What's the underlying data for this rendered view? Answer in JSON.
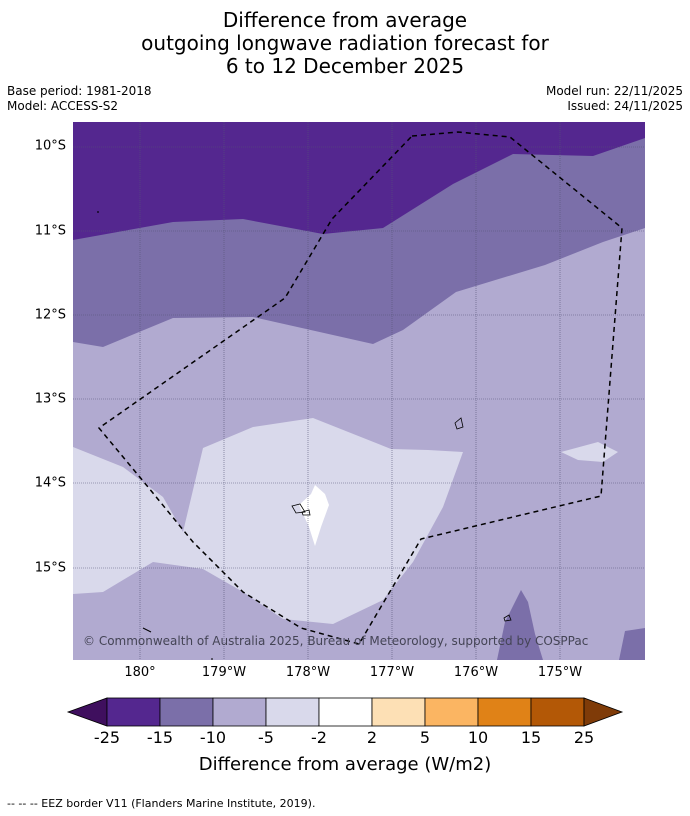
{
  "title": {
    "line1": "Difference from average",
    "line2": "outgoing longwave radiation forecast for",
    "line3": "6 to 12 December 2025"
  },
  "meta": {
    "base_period": "Base period: 1981-2018",
    "model": "Model: ACCESS-S2",
    "model_run": "Model run: 22/11/2025",
    "issued": "Issued: 24/11/2025"
  },
  "map": {
    "lat_labels": [
      "10°S",
      "11°S",
      "12°S",
      "13°S",
      "14°S",
      "15°S"
    ],
    "lon_labels": [
      "180°",
      "179°W",
      "178°W",
      "177°W",
      "176°W",
      "175°W"
    ],
    "copyright": "© Commonwealth of Australia 2025, Bureau of Meteorology, supported by COSPPac"
  },
  "colorbar": {
    "ticks": [
      "-25",
      "-15",
      "-10",
      "-5",
      "-2",
      "2",
      "5",
      "10",
      "15",
      "25"
    ],
    "colors": [
      "#3f0f5e",
      "#54278f",
      "#7b6fa9",
      "#b1aad0",
      "#d9d9eb",
      "#ffffff",
      "#fde0b5",
      "#fbb562",
      "#e08217",
      "#b35806",
      "#7f3b08"
    ],
    "label": "Difference from average (W/m2)"
  },
  "legend": {
    "text": "--  --  -- EEZ border V11 (Flanders Marine Institute, 2019)."
  }
}
